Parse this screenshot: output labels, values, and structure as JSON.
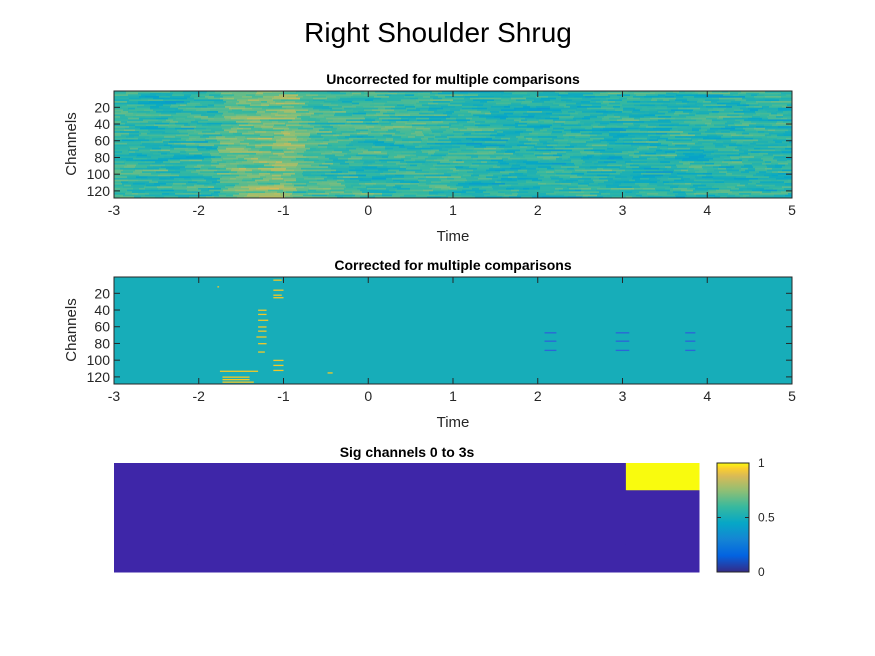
{
  "figure": {
    "title": "Right Shoulder Shrug"
  },
  "chart_data": [
    {
      "type": "heatmap",
      "title": "Uncorrected for multiple comparisons",
      "xlabel": "Time",
      "ylabel": "Channels",
      "xlim": [
        -3,
        5
      ],
      "ylim": [
        1,
        128
      ],
      "y_reversed": true,
      "xticks": [
        "-3",
        "-2",
        "-1",
        "0",
        "1",
        "2",
        "3",
        "4",
        "5"
      ],
      "yticks": [
        "20",
        "40",
        "60",
        "80",
        "100",
        "120"
      ],
      "colormap": "parula",
      "description_values": "continuous noisy field, dominant green-cyan; warmer (yellow) band around time -1.5 to -1; bluish streaks after 1 s"
    },
    {
      "type": "heatmap",
      "title": "Corrected for multiple comparisons",
      "xlabel": "Time",
      "ylabel": "Channels",
      "xlim": [
        -3,
        5
      ],
      "ylim": [
        1,
        128
      ],
      "y_reversed": true,
      "xticks": [
        "-3",
        "-2",
        "-1",
        "0",
        "1",
        "2",
        "3",
        "4",
        "5"
      ],
      "yticks": [
        "20",
        "40",
        "60",
        "80",
        "100",
        "120"
      ],
      "background_value": 0.5,
      "high_value_marks": [
        {
          "t0": -1.78,
          "t1": -1.76,
          "ch": 12
        },
        {
          "t0": -1.3,
          "t1": -1.2,
          "ch": 40
        },
        {
          "t0": -1.3,
          "t1": -1.2,
          "ch": 45
        },
        {
          "t0": -1.3,
          "t1": -1.18,
          "ch": 52
        },
        {
          "t0": -1.3,
          "t1": -1.2,
          "ch": 60
        },
        {
          "t0": -1.3,
          "t1": -1.2,
          "ch": 65
        },
        {
          "t0": -1.32,
          "t1": -1.2,
          "ch": 72
        },
        {
          "t0": -1.3,
          "t1": -1.2,
          "ch": 80
        },
        {
          "t0": -1.3,
          "t1": -1.22,
          "ch": 90
        },
        {
          "t0": -1.12,
          "t1": -1.02,
          "ch": 4
        },
        {
          "t0": -1.12,
          "t1": -1.0,
          "ch": 16
        },
        {
          "t0": -1.12,
          "t1": -1.02,
          "ch": 22
        },
        {
          "t0": -1.12,
          "t1": -1.0,
          "ch": 25
        },
        {
          "t0": -1.12,
          "t1": -1.0,
          "ch": 100
        },
        {
          "t0": -1.12,
          "t1": -1.0,
          "ch": 106
        },
        {
          "t0": -1.12,
          "t1": -1.0,
          "ch": 112
        },
        {
          "t0": -1.75,
          "t1": -1.3,
          "ch": 113
        },
        {
          "t0": -1.72,
          "t1": -1.4,
          "ch": 120
        },
        {
          "t0": -1.72,
          "t1": -1.4,
          "ch": 123
        },
        {
          "t0": -1.72,
          "t1": -1.35,
          "ch": 126
        },
        {
          "t0": -0.48,
          "t1": -0.42,
          "ch": 115
        }
      ],
      "low_value_marks": [
        {
          "t0": 2.08,
          "t1": 2.22,
          "ch": 67
        },
        {
          "t0": 2.08,
          "t1": 2.22,
          "ch": 77
        },
        {
          "t0": 2.08,
          "t1": 2.22,
          "ch": 88
        },
        {
          "t0": 2.92,
          "t1": 3.08,
          "ch": 67
        },
        {
          "t0": 2.92,
          "t1": 3.08,
          "ch": 77
        },
        {
          "t0": 2.92,
          "t1": 3.08,
          "ch": 88
        },
        {
          "t0": 3.74,
          "t1": 3.86,
          "ch": 67
        },
        {
          "t0": 3.74,
          "t1": 3.86,
          "ch": 77
        },
        {
          "t0": 3.74,
          "t1": 3.86,
          "ch": 88
        }
      ]
    },
    {
      "type": "heatmap",
      "title": "Sig channels 0 to 3s",
      "grid": {
        "rows": 4,
        "cols": 8
      },
      "values": [
        [
          0,
          0,
          0,
          0,
          0,
          0,
          0,
          1
        ],
        [
          0,
          0,
          0,
          0,
          0,
          0,
          0,
          0
        ],
        [
          0,
          0,
          0,
          0,
          0,
          0,
          0,
          0
        ],
        [
          0,
          0,
          0,
          0,
          0,
          0,
          0,
          0
        ]
      ],
      "colorbar": {
        "ticks": [
          "0",
          "0.5",
          "1"
        ],
        "range": [
          0,
          1
        ]
      }
    }
  ]
}
